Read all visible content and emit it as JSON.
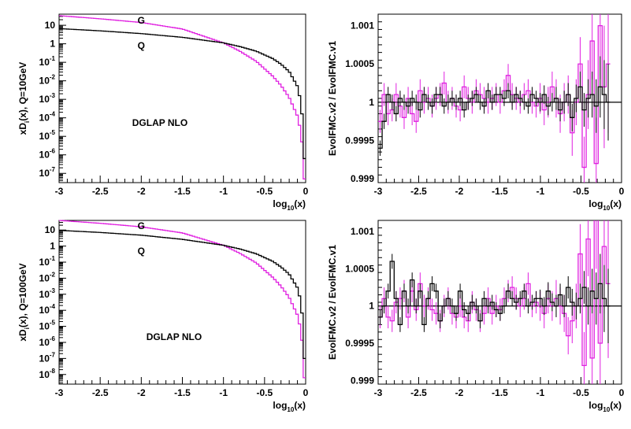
{
  "colors": {
    "gluon": "#e020e0",
    "quark": "#000000",
    "axis": "#000000"
  },
  "chart_data": [
    {
      "id": "top-left",
      "type": "line",
      "log_y": true,
      "ylabel": "xD_i(x), Q=10GeV",
      "xlabel_base": "log",
      "xlabel_sub": "10",
      "xlabel_tail": "(x)",
      "xlim": [
        -3,
        0
      ],
      "ylim_exp": [
        -7.5,
        1.6
      ],
      "x_ticks": [
        "-3",
        "-2.5",
        "-2",
        "-1.5",
        "-1",
        "-0.5",
        "0"
      ],
      "y_tick_exps": [
        -7,
        -6,
        -5,
        -4,
        -3,
        -2,
        -1,
        0,
        1
      ],
      "y_plain_labels": {
        "0": "1",
        "1": "10"
      },
      "annotation": "DGLAP NLO",
      "series": [
        {
          "name": "G",
          "logx": [
            -3,
            -2.5,
            -2,
            -1.5,
            -1,
            -0.8,
            -0.6,
            -0.4,
            -0.3,
            -0.2,
            -0.1,
            -0.05,
            -0.02
          ],
          "log10y": [
            1.52,
            1.35,
            1.15,
            0.8,
            0.05,
            -0.4,
            -0.95,
            -1.75,
            -2.25,
            -2.9,
            -3.9,
            -4.9,
            -7.3
          ]
        },
        {
          "name": "Q",
          "logx": [
            -3,
            -2.5,
            -2,
            -1.5,
            -1,
            -0.8,
            -0.6,
            -0.4,
            -0.3,
            -0.2,
            -0.1,
            -0.05,
            -0.02
          ],
          "log10y": [
            0.82,
            0.7,
            0.55,
            0.35,
            0.05,
            -0.15,
            -0.4,
            -0.8,
            -1.1,
            -1.5,
            -2.3,
            -3.3,
            -6.2
          ]
        }
      ]
    },
    {
      "id": "top-right",
      "type": "line",
      "ylabel": "EvolFMC.v2 / EvolFMC.v1",
      "xlabel_base": "log",
      "xlabel_sub": "10",
      "xlabel_tail": "(x)",
      "xlim": [
        -3,
        0
      ],
      "ylim": [
        0.99895,
        1.00115
      ],
      "x_ticks": [
        "-3",
        "-2.5",
        "-2",
        "-1.5",
        "-1",
        "-0.5",
        "0"
      ],
      "y_ticks": [
        "0.999",
        "0.9995",
        "1",
        "1.0005",
        "1.001"
      ],
      "y_tick_values": [
        0.999,
        0.9995,
        1,
        1.0005,
        1.001
      ],
      "reference_line": 1,
      "series": [
        {
          "name": "G",
          "values": [
            0.99975,
            1.0001,
            0.99985,
            0.9999,
            1.0001,
            0.99995,
            0.9998,
            1.00005,
            0.99985,
            0.99975,
            1.00015,
            1.0,
            1.00005,
            0.99995,
            1.00005,
            1.0001,
            1.00025,
            1.0,
            1.00005,
            0.99995,
            0.9999,
            1.0002,
            1.00005,
            1.0,
            1.00015,
            1.0001,
            1.00005,
            1.0,
            1.00005,
            1.0001,
            1.0,
            1.00015,
            1.00035,
            1.0001,
            1.00005,
            1.0,
            1.0001,
            1.00015,
            1.0,
            0.99995,
            1.00005,
            0.9999,
            1.0,
            1.0002,
            1.00005,
            0.99985,
            1.0,
            1.0001,
            0.9996,
            1.0,
            1.0005,
            0.99915,
            1.0001,
            1.0008,
            0.9992,
            1.001,
            1.0002,
            1.0005
          ],
          "errors": [
            0.00015,
            0.00015,
            0.00015,
            0.00015,
            0.00015,
            0.00015,
            0.00015,
            0.00015,
            0.00015,
            0.00015,
            0.00015,
            0.00015,
            0.00015,
            0.00015,
            0.00015,
            0.00015,
            0.00015,
            0.00015,
            0.00015,
            0.00015,
            0.00015,
            0.00015,
            0.00015,
            0.00015,
            0.00015,
            0.00015,
            0.00015,
            0.00015,
            0.00015,
            0.00015,
            0.00015,
            0.00015,
            0.00015,
            0.00015,
            0.00015,
            0.00015,
            0.00015,
            0.00015,
            0.00015,
            0.00015,
            0.0002,
            0.0002,
            0.0002,
            0.0002,
            0.00025,
            0.00025,
            0.00025,
            0.00025,
            0.0003,
            0.0003,
            0.00035,
            0.0004,
            0.00045,
            0.0005,
            0.0006,
            0.0007,
            0.0008,
            0.0009
          ]
        },
        {
          "name": "Q",
          "values": [
            0.9994,
            0.99975,
            1.0001,
            1.0,
            0.99985,
            1.00005,
            1.0,
            0.99995,
            1.00005,
            1.0,
            0.9999,
            1.0001,
            1.0,
            0.99995,
            1.0001,
            1.0001,
            0.99995,
            1.0,
            1.00005,
            1.0,
            1.00005,
            0.9999,
            1.0,
            1.00005,
            1.0001,
            1.0,
            0.99995,
            1.00015,
            1.0,
            1.0001,
            1.0001,
            1.00005,
            1.00015,
            1.0,
            1.0001,
            1.00005,
            1.0,
            0.99995,
            1.0001,
            1.00005,
            1.0,
            1.0001,
            0.99995,
            1.0,
            1.00005,
            0.9999,
            1.0,
            1.0001,
            0.9998,
            1.00005,
            1.0002,
            0.9999,
            1.00005,
            1.0001,
            0.99995,
            1.0002,
            1.0001,
            1.0
          ],
          "errors": [
            0.0001,
            0.0001,
            0.0001,
            0.0001,
            0.0001,
            0.0001,
            0.0001,
            0.0001,
            0.0001,
            0.0001,
            0.0001,
            0.0001,
            0.0001,
            0.0001,
            0.0001,
            0.0001,
            0.0001,
            0.0001,
            0.0001,
            0.0001,
            0.0001,
            0.0001,
            0.0001,
            0.0001,
            0.0001,
            0.0001,
            0.0001,
            0.0001,
            0.0001,
            0.0001,
            0.0001,
            0.0001,
            0.0001,
            0.0001,
            0.0001,
            0.0001,
            0.0001,
            0.0001,
            0.0001,
            0.0001,
            0.00012,
            0.00012,
            0.00012,
            0.00012,
            0.00015,
            0.00015,
            0.00015,
            0.00015,
            0.00018,
            0.00018,
            0.0002,
            0.00022,
            0.00025,
            0.0003,
            0.00035,
            0.0004,
            0.00045,
            0.0005
          ]
        }
      ]
    },
    {
      "id": "bottom-left",
      "type": "line",
      "log_y": true,
      "ylabel": "xD_i(x), Q=100GeV",
      "xlabel_base": "log",
      "xlabel_sub": "10",
      "xlabel_tail": "(x)",
      "xlim": [
        -3,
        0
      ],
      "ylim_exp": [
        -8.6,
        1.6
      ],
      "x_ticks": [
        "-3",
        "-2.5",
        "-2",
        "-1.5",
        "-1",
        "-0.5",
        "0"
      ],
      "y_tick_exps": [
        -8,
        -7,
        -6,
        -5,
        -4,
        -3,
        -2,
        -1,
        0,
        1
      ],
      "y_plain_labels": {
        "0": "1",
        "1": "10"
      },
      "annotation": "DGLAP NLO",
      "series": [
        {
          "name": "G",
          "logx": [
            -3,
            -2.5,
            -2,
            -1.5,
            -1,
            -0.8,
            -0.6,
            -0.4,
            -0.3,
            -0.2,
            -0.1,
            -0.05,
            -0.02
          ],
          "log10y": [
            1.6,
            1.42,
            1.2,
            0.82,
            0.05,
            -0.45,
            -1.05,
            -1.95,
            -2.5,
            -3.2,
            -4.3,
            -5.4,
            -8.2
          ]
        },
        {
          "name": "Q",
          "logx": [
            -3,
            -2.5,
            -2,
            -1.5,
            -1,
            -0.8,
            -0.6,
            -0.4,
            -0.3,
            -0.2,
            -0.1,
            -0.05,
            -0.02
          ],
          "log10y": [
            0.98,
            0.85,
            0.68,
            0.42,
            0.05,
            -0.18,
            -0.48,
            -0.95,
            -1.3,
            -1.75,
            -2.6,
            -3.6,
            -7.0
          ]
        }
      ]
    },
    {
      "id": "bottom-right",
      "type": "line",
      "ylabel": "EvolFMC.v2 / EvolFMC.v1",
      "xlabel_base": "log",
      "xlabel_sub": "10",
      "xlabel_tail": "(x)",
      "xlim": [
        -3,
        0
      ],
      "ylim": [
        0.99895,
        1.00115
      ],
      "x_ticks": [
        "-3",
        "-2.5",
        "-2",
        "-1.5",
        "-1",
        "-0.5",
        "0"
      ],
      "y_ticks": [
        "0.999",
        "0.9995",
        "1",
        "1.0005",
        "1.001"
      ],
      "y_tick_values": [
        0.999,
        0.9995,
        1,
        1.0005,
        1.001
      ],
      "reference_line": 1,
      "series": [
        {
          "name": "G",
          "values": [
            0.99985,
            1.0001,
            0.99985,
            0.9998,
            1.00005,
            1.0001,
            1.0002,
            0.99985,
            1.0002,
            0.99995,
            1.0003,
            1.0,
            1.0001,
            0.99995,
            0.9999,
            0.9998,
            1.0,
            1.0001,
            0.9999,
            0.99985,
            1.0,
            0.99985,
            0.9998,
            1.00005,
            0.99995,
            0.9998,
            0.9999,
            1.0001,
            0.9999,
            1.0,
            0.99995,
            1.0001,
            1.0002,
            1.00025,
            1.0001,
            1.0,
            1.0001,
            1.0003,
            1.0,
            1.00005,
            1.0,
            0.9999,
            1.0001,
            1.0,
            1.0001,
            1.0,
            0.9999,
            0.9996,
            0.9998,
            1.0,
            1.0007,
            0.9992,
            1.0009,
            0.9993,
            1.0012,
            0.9995,
            1.0008,
            1.0003
          ],
          "errors": [
            0.00015,
            0.00015,
            0.00015,
            0.00015,
            0.00015,
            0.00015,
            0.00015,
            0.00015,
            0.00015,
            0.00015,
            0.00015,
            0.00015,
            0.00015,
            0.00015,
            0.00015,
            0.00015,
            0.00015,
            0.00015,
            0.00015,
            0.00015,
            0.00015,
            0.00015,
            0.00015,
            0.00015,
            0.00015,
            0.00015,
            0.00015,
            0.00015,
            0.00015,
            0.00015,
            0.00015,
            0.00015,
            0.00015,
            0.00015,
            0.00015,
            0.00015,
            0.00015,
            0.00015,
            0.00015,
            0.00015,
            0.0002,
            0.0002,
            0.0002,
            0.0002,
            0.00025,
            0.00025,
            0.00025,
            0.00025,
            0.0003,
            0.0003,
            0.0004,
            0.00045,
            0.0005,
            0.0006,
            0.0007,
            0.0008,
            0.0009,
            0.001
          ]
        },
        {
          "name": "Q",
          "values": [
            0.99985,
            1.0,
            1.0002,
            1.0006,
            1.0001,
            0.99975,
            1.0002,
            1.0,
            1.00035,
            1.0,
            1.0002,
            0.99975,
            1.0001,
            1.0003,
            1.0002,
            0.9998,
            1.0,
            1.0001,
            1.0,
            0.9999,
            1.0002,
            0.99995,
            0.9999,
            1.00005,
            1.0,
            0.9998,
            1.0001,
            1.0,
            1.00005,
            0.99995,
            0.9999,
            1.0,
            1.0002,
            1.0001,
            1.00005,
            1.0001,
            1.0002,
            1.0,
            1.00005,
            1.0001,
            1.0001,
            1.0,
            1.0002,
            1.00005,
            1.0,
            1.00015,
            1.0,
            1.00025,
            1.00005,
            1.0,
            1.0001,
            1.00025,
            1.0,
            1.0002,
            1.0001,
            1.0003,
            1.0001,
            1.0
          ],
          "errors": [
            0.0001,
            0.0001,
            0.0001,
            0.0001,
            0.0001,
            0.0001,
            0.0001,
            0.0001,
            0.0001,
            0.0001,
            0.0001,
            0.0001,
            0.0001,
            0.0001,
            0.0001,
            0.0001,
            0.0001,
            0.0001,
            0.0001,
            0.0001,
            0.0001,
            0.0001,
            0.0001,
            0.0001,
            0.0001,
            0.0001,
            0.0001,
            0.0001,
            0.0001,
            0.0001,
            0.0001,
            0.0001,
            0.0001,
            0.0001,
            0.0001,
            0.0001,
            0.0001,
            0.0001,
            0.0001,
            0.0001,
            0.00012,
            0.00012,
            0.00012,
            0.00012,
            0.00015,
            0.00015,
            0.00015,
            0.00015,
            0.00018,
            0.00018,
            0.0002,
            0.00022,
            0.00025,
            0.0003,
            0.00035,
            0.0004,
            0.00045,
            0.0005
          ]
        }
      ]
    }
  ]
}
